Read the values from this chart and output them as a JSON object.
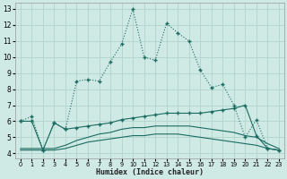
{
  "xlabel": "Humidex (Indice chaleur)",
  "bg_color": "#cfe9e5",
  "grid_color": "#b0d4cc",
  "line_color": "#1a6b60",
  "xlim": [
    -0.5,
    23.5
  ],
  "ylim": [
    3.7,
    13.4
  ],
  "xticks": [
    0,
    1,
    2,
    3,
    4,
    5,
    6,
    7,
    8,
    9,
    10,
    11,
    12,
    13,
    14,
    15,
    16,
    17,
    18,
    19,
    20,
    21,
    22,
    23
  ],
  "yticks": [
    4,
    5,
    6,
    7,
    8,
    9,
    10,
    11,
    12,
    13
  ],
  "line1_x": [
    0,
    1,
    2,
    3,
    4,
    5,
    6,
    7,
    8,
    9,
    10,
    11,
    12,
    13,
    14,
    15,
    16,
    17,
    18,
    19,
    20,
    21,
    22,
    23
  ],
  "line1_y": [
    6.0,
    6.3,
    4.2,
    5.9,
    5.5,
    8.5,
    8.6,
    8.5,
    9.7,
    10.8,
    13.0,
    10.0,
    9.8,
    12.1,
    11.5,
    11.0,
    9.2,
    8.1,
    8.3,
    7.0,
    5.0,
    6.1,
    4.3,
    4.2
  ],
  "line2_x": [
    0,
    1,
    2,
    3,
    4,
    5,
    6,
    7,
    8,
    9,
    10,
    11,
    12,
    13,
    14,
    15,
    16,
    17,
    18,
    19,
    20,
    21,
    22,
    23
  ],
  "line2_y": [
    6.0,
    6.0,
    4.2,
    5.9,
    5.5,
    5.6,
    5.7,
    5.8,
    5.9,
    6.1,
    6.2,
    6.3,
    6.4,
    6.5,
    6.5,
    6.5,
    6.5,
    6.6,
    6.7,
    6.8,
    7.0,
    5.1,
    4.3,
    4.2
  ],
  "line3_x": [
    0,
    1,
    2,
    3,
    4,
    5,
    6,
    7,
    8,
    9,
    10,
    11,
    12,
    13,
    14,
    15,
    16,
    17,
    18,
    19,
    20,
    21,
    22,
    23
  ],
  "line3_y": [
    4.3,
    4.3,
    4.3,
    4.3,
    4.5,
    4.8,
    5.0,
    5.2,
    5.3,
    5.5,
    5.6,
    5.6,
    5.7,
    5.7,
    5.7,
    5.7,
    5.6,
    5.5,
    5.4,
    5.3,
    5.1,
    5.0,
    4.6,
    4.3
  ],
  "line4_x": [
    0,
    1,
    2,
    3,
    4,
    5,
    6,
    7,
    8,
    9,
    10,
    11,
    12,
    13,
    14,
    15,
    16,
    17,
    18,
    19,
    20,
    21,
    22,
    23
  ],
  "line4_y": [
    4.2,
    4.2,
    4.2,
    4.2,
    4.3,
    4.5,
    4.7,
    4.8,
    4.9,
    5.0,
    5.1,
    5.1,
    5.2,
    5.2,
    5.2,
    5.1,
    5.0,
    4.9,
    4.8,
    4.7,
    4.6,
    4.5,
    4.3,
    4.2
  ]
}
